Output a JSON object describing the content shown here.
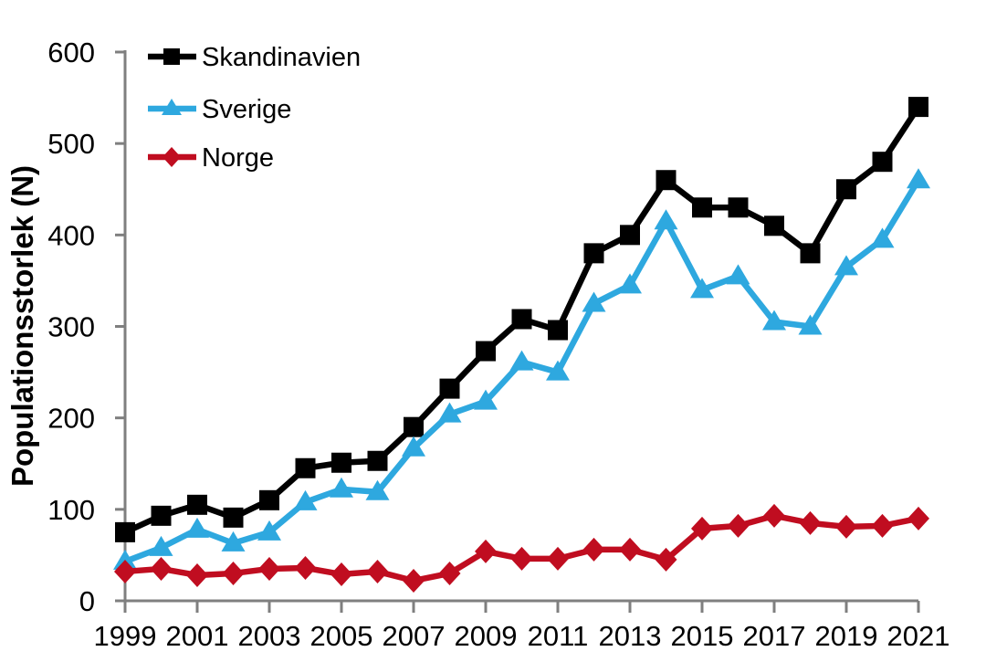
{
  "chart_data": {
    "type": "line",
    "title": "",
    "ylabel": "Populationsstorlek (N)",
    "xlabel": "",
    "ylim": [
      0,
      600
    ],
    "ytick_interval": 100,
    "yticks": [
      0,
      100,
      200,
      300,
      400,
      500,
      600
    ],
    "x": [
      1999,
      2000,
      2001,
      2002,
      2003,
      2004,
      2005,
      2006,
      2007,
      2008,
      2009,
      2010,
      2011,
      2012,
      2013,
      2014,
      2015,
      2016,
      2017,
      2018,
      2019,
      2020,
      2021
    ],
    "xtick_labels": [
      "1999",
      "2001",
      "2003",
      "2005",
      "2007",
      "2009",
      "2011",
      "2013",
      "2015",
      "2017",
      "2019",
      "2021"
    ],
    "grid": false,
    "legend_position": "top-left-inside",
    "colors": {
      "background": "#FFFFFF",
      "axis": "#7F7F7F",
      "text": "#000000"
    },
    "series": [
      {
        "name": "Skandinavien",
        "color": "#000000",
        "marker": "square",
        "values": [
          75,
          93,
          105,
          91,
          110,
          145,
          151,
          153,
          190,
          232,
          273,
          308,
          296,
          380,
          400,
          460,
          430,
          430,
          410,
          380,
          450,
          480,
          540
        ]
      },
      {
        "name": "Sverige",
        "color": "#2EA8DF",
        "marker": "triangle-up",
        "values": [
          43,
          58,
          78,
          63,
          75,
          108,
          122,
          119,
          167,
          204,
          218,
          261,
          250,
          325,
          345,
          415,
          340,
          355,
          305,
          300,
          365,
          395,
          460
        ]
      },
      {
        "name": "Norge",
        "color": "#C00D20",
        "marker": "diamond",
        "values": [
          32,
          35,
          28,
          30,
          35,
          36,
          29,
          32,
          22,
          30,
          54,
          46,
          46,
          56,
          56,
          45,
          79,
          82,
          93,
          85,
          81,
          82,
          90
        ]
      }
    ]
  }
}
